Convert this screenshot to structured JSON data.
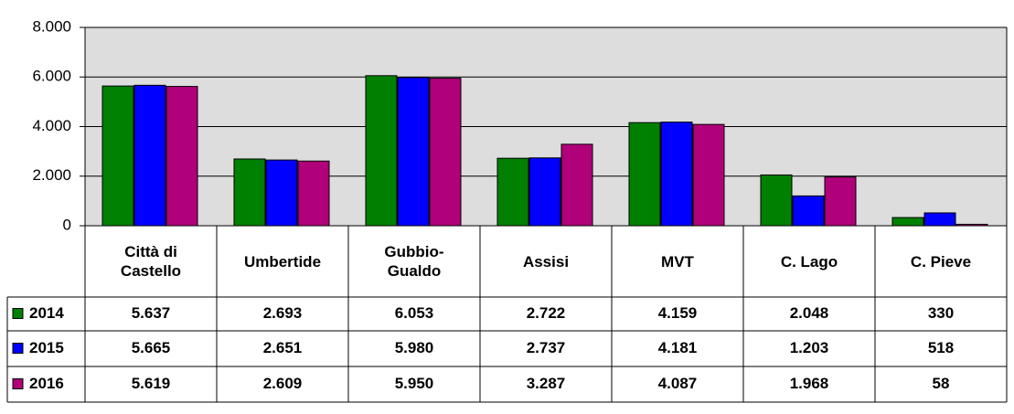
{
  "chart_data": {
    "type": "bar",
    "categories": [
      "Città di Castello",
      "Umbertide",
      "Gubbio-Gualdo",
      "Assisi",
      "MVT",
      "C. Lago",
      "C. Pieve"
    ],
    "series": [
      {
        "name": "2014",
        "color": "#008000",
        "values": [
          5637,
          2693,
          6053,
          2722,
          4159,
          2048,
          330
        ],
        "value_labels": [
          "5.637",
          "2.693",
          "6.053",
          "2.722",
          "4.159",
          "2.048",
          "330"
        ]
      },
      {
        "name": "2015",
        "color": "#0000ff",
        "values": [
          5665,
          2651,
          5980,
          2737,
          4181,
          1203,
          518
        ],
        "value_labels": [
          "5.665",
          "2.651",
          "5.980",
          "2.737",
          "4.181",
          "1.203",
          "518"
        ]
      },
      {
        "name": "2016",
        "color": "#b0007a",
        "values": [
          5619,
          2609,
          5950,
          3287,
          4087,
          1968,
          58
        ],
        "value_labels": [
          "5.619",
          "2.609",
          "5.950",
          "3.287",
          "4.087",
          "1.968",
          "58"
        ]
      }
    ],
    "ylim": [
      0,
      8000
    ],
    "yticks": [
      0,
      {
        "value": 2000,
        "label": "2.000"
      },
      {
        "value": 4000,
        "label": "4.000"
      },
      {
        "value": 6000,
        "label": "6.000"
      },
      {
        "value": 8000,
        "label": "8.000"
      }
    ],
    "grid": true,
    "plot_background": "#dddddd"
  }
}
